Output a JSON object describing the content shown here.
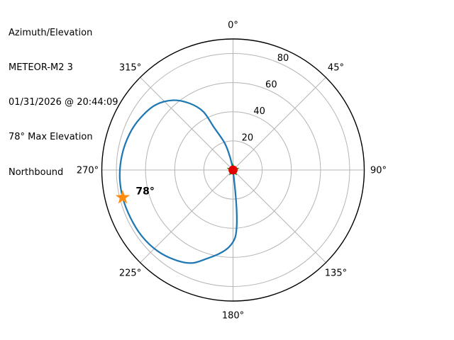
{
  "header": {
    "plot_type": "Azimuth/Elevation",
    "satellite": "METEOR-M2 3",
    "timestamp": "01/31/2026 @ 20:44:09",
    "max_elevation_text": "78° Max Elevation",
    "direction": "Northbound"
  },
  "chart_data": {
    "type": "polar_line",
    "title": "Azimuth/Elevation",
    "angular_axis": {
      "label": "azimuth_deg",
      "zero_location": "top",
      "direction": "clockwise",
      "tick_labels": [
        "0°",
        "45°",
        "90°",
        "135°",
        "180°",
        "225°",
        "270°",
        "315°"
      ],
      "tick_values": [
        0,
        45,
        90,
        135,
        180,
        225,
        270,
        315
      ]
    },
    "radial_axis": {
      "label": "elevation_deg",
      "min_at_center": 0,
      "max_at_edge": 90,
      "tick_labels": [
        "20",
        "40",
        "60",
        "80"
      ],
      "tick_values": [
        20,
        40,
        60,
        80
      ],
      "tick_label_angle_deg": 24
    },
    "grid": true,
    "series": [
      {
        "name": "satellite-pass-trajectory",
        "color": "#1f77b4",
        "points_az_el": [
          [
            177,
            0
          ],
          [
            174,
            15
          ],
          [
            175,
            29
          ],
          [
            176.5,
            40
          ],
          [
            178.5,
            47
          ],
          [
            183,
            53
          ],
          [
            189,
            58
          ],
          [
            196.5,
            63.5
          ],
          [
            204,
            70
          ],
          [
            213,
            73.5
          ],
          [
            223,
            76
          ],
          [
            234,
            77.3
          ],
          [
            245,
            77.6
          ],
          [
            256,
            78
          ],
          [
            267,
            77.8
          ],
          [
            278,
            76.8
          ],
          [
            289,
            75.2
          ],
          [
            299,
            73
          ],
          [
            310,
            69.5
          ],
          [
            319.5,
            63
          ],
          [
            327,
            54.5
          ],
          [
            333,
            45
          ],
          [
            336,
            32
          ],
          [
            343,
            19
          ],
          [
            347.5,
            8
          ],
          [
            352,
            0
          ]
        ]
      }
    ],
    "markers": [
      {
        "name": "aos-marker",
        "shape": "star",
        "color": "#088b08",
        "az": 177,
        "el": 0,
        "label": ""
      },
      {
        "name": "los-marker",
        "shape": "dot",
        "color": "#e50000",
        "az": 352,
        "el": 0,
        "label": ""
      },
      {
        "name": "max-elevation-marker",
        "shape": "star",
        "color": "#ff8c0e",
        "az": 256,
        "el": 78,
        "label": "78°"
      }
    ],
    "colors": {
      "outline": "#000000",
      "grid": "#b4b4b4",
      "background": "#ffffff",
      "trajectory": "#1f77b4",
      "max_elevation_star": "#ff8c0e",
      "aos_star": "#088b08",
      "los_dot": "#e50000"
    }
  }
}
